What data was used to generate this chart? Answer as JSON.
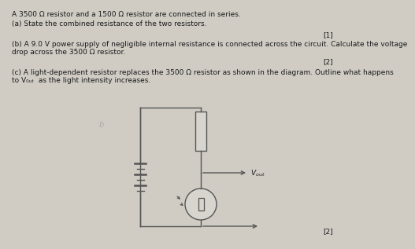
{
  "bg_color": "#d0ccc4",
  "text_color": "#1a1a1a",
  "title_line": "A 3500 Ω resistor and a 1500 Ω resistor are connected in series.",
  "qa": "(a) State the combined resistance of the two resistors.",
  "mark_a": "[1]",
  "qb": "(b) A 9.0 V power supply of negligible internal resistance is connected across the circuit. Calculate the voltage\ndrop across the 3500 Ω resistor.",
  "mark_b": "[2]",
  "qc": "(c) A light-dependent resistor replaces the 3500 Ω resistor as shown in the diagram. Outline what happens\nto V₀ᵤₜ  as the light intensity increases.",
  "mark_c": "[2]",
  "font_size": 6.5,
  "circuit_color": "#555555",
  "circuit_bg": "#d8d5ce"
}
